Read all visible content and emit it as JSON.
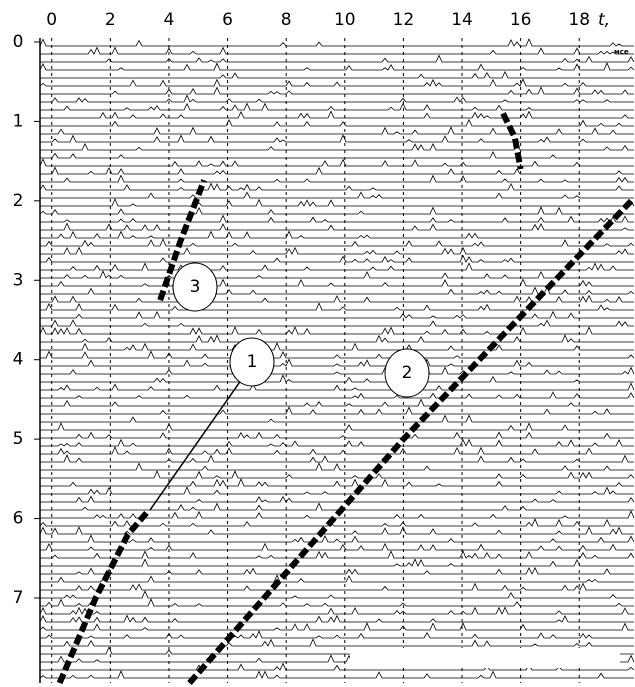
{
  "chart_data": {
    "type": "seismogram",
    "x_label": "t,",
    "x_unit": "мсе",
    "xlim": [
      -0.4,
      19.8
    ],
    "xticks": [
      0,
      2,
      4,
      6,
      8,
      10,
      12,
      14,
      16,
      18
    ],
    "ylim": [
      -0.05,
      8.07
    ],
    "yticks": [
      0,
      1,
      2,
      3,
      4,
      5,
      6,
      7
    ],
    "y_inverted": true,
    "grid": true,
    "series": [
      {
        "name": "1",
        "color": "#000000",
        "x": [
          0.27,
          1.5,
          2.6,
          3.3
        ],
        "values": [
          8.07,
          7.0,
          6.2,
          5.9
        ]
      },
      {
        "name": "2",
        "color": "#000000",
        "x": [
          4.7,
          12.0,
          19.8
        ],
        "values": [
          8.07,
          5.0,
          1.99
        ]
      },
      {
        "name": "3",
        "color": "#000000",
        "x": [
          3.7,
          4.4,
          5.2
        ],
        "values": [
          3.25,
          2.5,
          1.74
        ]
      },
      {
        "color": "#000000",
        "x": [
          15.4,
          15.8,
          16.0
        ],
        "values": [
          0.9,
          1.2,
          1.6
        ]
      }
    ]
  }
}
